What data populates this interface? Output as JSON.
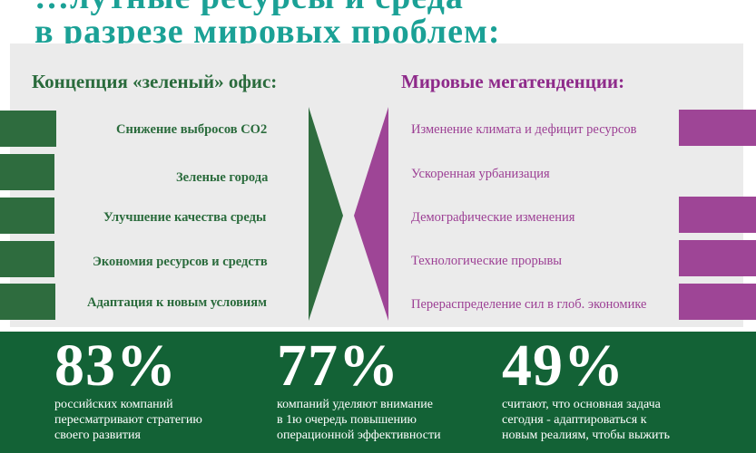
{
  "title": {
    "line1": "…лутные ресурсы и среда",
    "line2": "в разрезе мировых проблем:"
  },
  "left_column": {
    "heading": "Концепция «зеленый» офис:",
    "items": [
      "Снижение выбросов СО2",
      "Зеленые города",
      "Улучшение качества среды",
      "Экономия ресурсов и средств",
      "Адаптация к новым условиям"
    ]
  },
  "right_column": {
    "heading": "Мировые мегатенденции:",
    "items": [
      "Изменение климата и дефицит ресурсов",
      "Ускоренная урбанизация",
      "Демографические изменения",
      "Технологические прорывы",
      "Перераспределение сил в глоб. экономике"
    ]
  },
  "stats": [
    {
      "value": "83%",
      "lines": [
        "российских компаний",
        "пересматривают стратегию",
        "своего развития"
      ]
    },
    {
      "value": "77%",
      "lines": [
        "компаний уделяют внимание",
        "в 1ю очередь повышению",
        "операционной эффективности"
      ]
    },
    {
      "value": "49%",
      "lines": [
        "считают, что основная задача",
        "сегодня - адаптироваться к",
        "новым реалиям, чтобы выжить"
      ]
    }
  ],
  "colors": {
    "title": "#1ba196",
    "green": "#2e6c3e",
    "purple": "#9e4596",
    "bottom_band": "#136236",
    "panel": "#ebebeb"
  }
}
